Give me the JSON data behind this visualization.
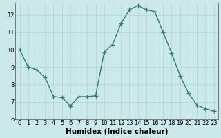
{
  "x": [
    0,
    1,
    2,
    3,
    4,
    5,
    6,
    7,
    8,
    9,
    10,
    11,
    12,
    13,
    14,
    15,
    16,
    17,
    18,
    19,
    20,
    21,
    22,
    23
  ],
  "y": [
    10.0,
    9.0,
    8.85,
    8.4,
    7.3,
    7.25,
    6.75,
    7.3,
    7.3,
    7.35,
    9.85,
    10.3,
    11.5,
    12.3,
    12.55,
    12.3,
    12.2,
    11.0,
    9.8,
    8.5,
    7.5,
    6.8,
    6.6,
    6.45
  ],
  "line_color": "#2e7d6e",
  "marker": "+",
  "marker_size": 4,
  "bg_color": "#cce9e9",
  "grid_color_major": "#b8d8d8",
  "grid_color_minor": "#d4ecec",
  "xlabel": "Humidex (Indice chaleur)",
  "ylim": [
    6,
    12.7
  ],
  "xlim": [
    -0.5,
    23.5
  ],
  "yticks": [
    6,
    7,
    8,
    9,
    10,
    11,
    12
  ],
  "xticks": [
    0,
    1,
    2,
    3,
    4,
    5,
    6,
    7,
    8,
    9,
    10,
    11,
    12,
    13,
    14,
    15,
    16,
    17,
    18,
    19,
    20,
    21,
    22,
    23
  ],
  "tick_fontsize": 6,
  "xlabel_fontsize": 7.5,
  "linewidth": 1.0,
  "marker_linewidth": 1.0
}
